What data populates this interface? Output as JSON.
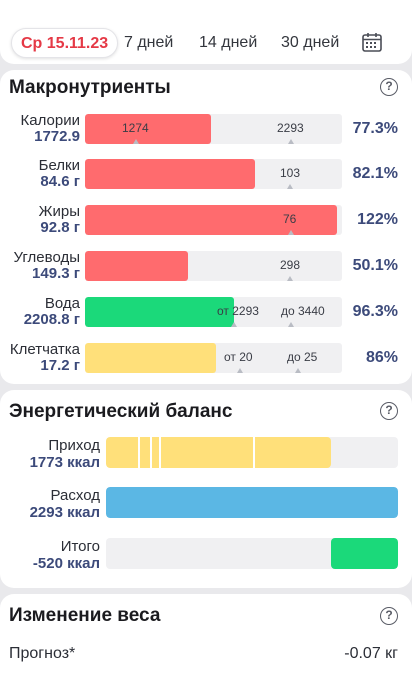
{
  "colors": {
    "red": "#ff6b6e",
    "green": "#1bd97a",
    "yellow": "#ffe07a",
    "blue": "#5bb7e4",
    "accent": "#e53946"
  },
  "tabs": [
    {
      "label": "Ср 15.11.23",
      "active": true
    },
    {
      "label": "7 дней"
    },
    {
      "label": "14 дней"
    },
    {
      "label": "30 дней"
    }
  ],
  "calendar_icon": "calendar-icon",
  "macro": {
    "title": "Макронутриенты",
    "help": "?",
    "rows": [
      {
        "name": "Калории",
        "value": "1772.9",
        "percent": "77.3%",
        "fill_fraction": 0.49,
        "color": "red",
        "marks": [
          "1274",
          "2293"
        ]
      },
      {
        "name": "Белки",
        "value": "84.6 г",
        "percent": "82.1%",
        "fill_fraction": 0.66,
        "color": "red",
        "marks": [
          "103"
        ]
      },
      {
        "name": "Жиры",
        "value": "92.8 г",
        "percent": "122%",
        "fill_fraction": 0.98,
        "color": "red",
        "marks": [
          "76"
        ]
      },
      {
        "name": "Углеводы",
        "value": "149.3 г",
        "percent": "50.1%",
        "fill_fraction": 0.4,
        "color": "red",
        "marks": [
          "298"
        ]
      },
      {
        "name": "Вода",
        "value": "2208.8 г",
        "percent": "96.3%",
        "fill_fraction": 0.58,
        "color": "green",
        "marks": [
          "от 2293",
          "до 3440"
        ]
      },
      {
        "name": "Клетчатка",
        "value": "17.2 г",
        "percent": "86%",
        "fill_fraction": 0.51,
        "color": "yellow",
        "marks": [
          "от 20",
          "до 25"
        ]
      }
    ]
  },
  "energy": {
    "title": "Энергетический баланс",
    "help": "?",
    "rows": [
      {
        "name": "Приход",
        "value": "1773 ккал",
        "fill_fraction": 0.77,
        "color": "yellow"
      },
      {
        "name": "Расход",
        "value": "2293 ккал",
        "fill_fraction": 1.0,
        "color": "blue"
      },
      {
        "name": "Итого",
        "value": "-520 ккал",
        "fill_fraction": 0.23,
        "color": "green"
      }
    ]
  },
  "weight": {
    "title": "Изменение веса",
    "help": "?",
    "forecast_label": "Прогноз*",
    "forecast_value": "-0.07 кг"
  }
}
